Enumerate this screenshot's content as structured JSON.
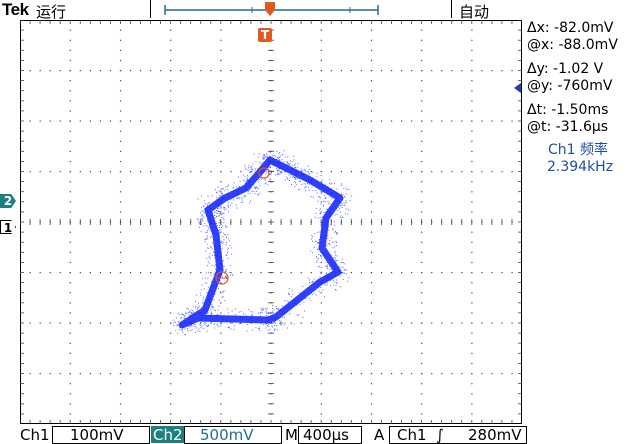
{
  "header": {
    "brand": "Tek",
    "run_state": "运行",
    "trigger_mode": "自动"
  },
  "readouts": {
    "delta_x": "Δx: -82.0mV",
    "at_x": "@x: -88.0mV",
    "delta_y": "Δy: -1.02 V",
    "at_y": "@y: -760mV",
    "delta_t": "Δt: -1.50ms",
    "at_t": "@t: -31.6μs"
  },
  "measurement": {
    "label": "Ch1 频率",
    "value": "2.394kHz"
  },
  "markers": {
    "ch2": "2",
    "ch1": "1",
    "trigger": "T"
  },
  "bottom": {
    "ch1_label": "Ch1",
    "ch1_scale": "100mV",
    "ch2_label": "Ch2",
    "ch2_scale": "500mV",
    "m_label": "M",
    "timebase": "400μs",
    "a_label": "A",
    "trig_source": "Ch1",
    "trig_slope": "∫",
    "trig_level": "280mV"
  },
  "colors": {
    "trace": "#1a2bff",
    "cursor": "#e05a20",
    "ch2_marker": "#1e7f7f",
    "measure_text": "#1f4f9e"
  }
}
